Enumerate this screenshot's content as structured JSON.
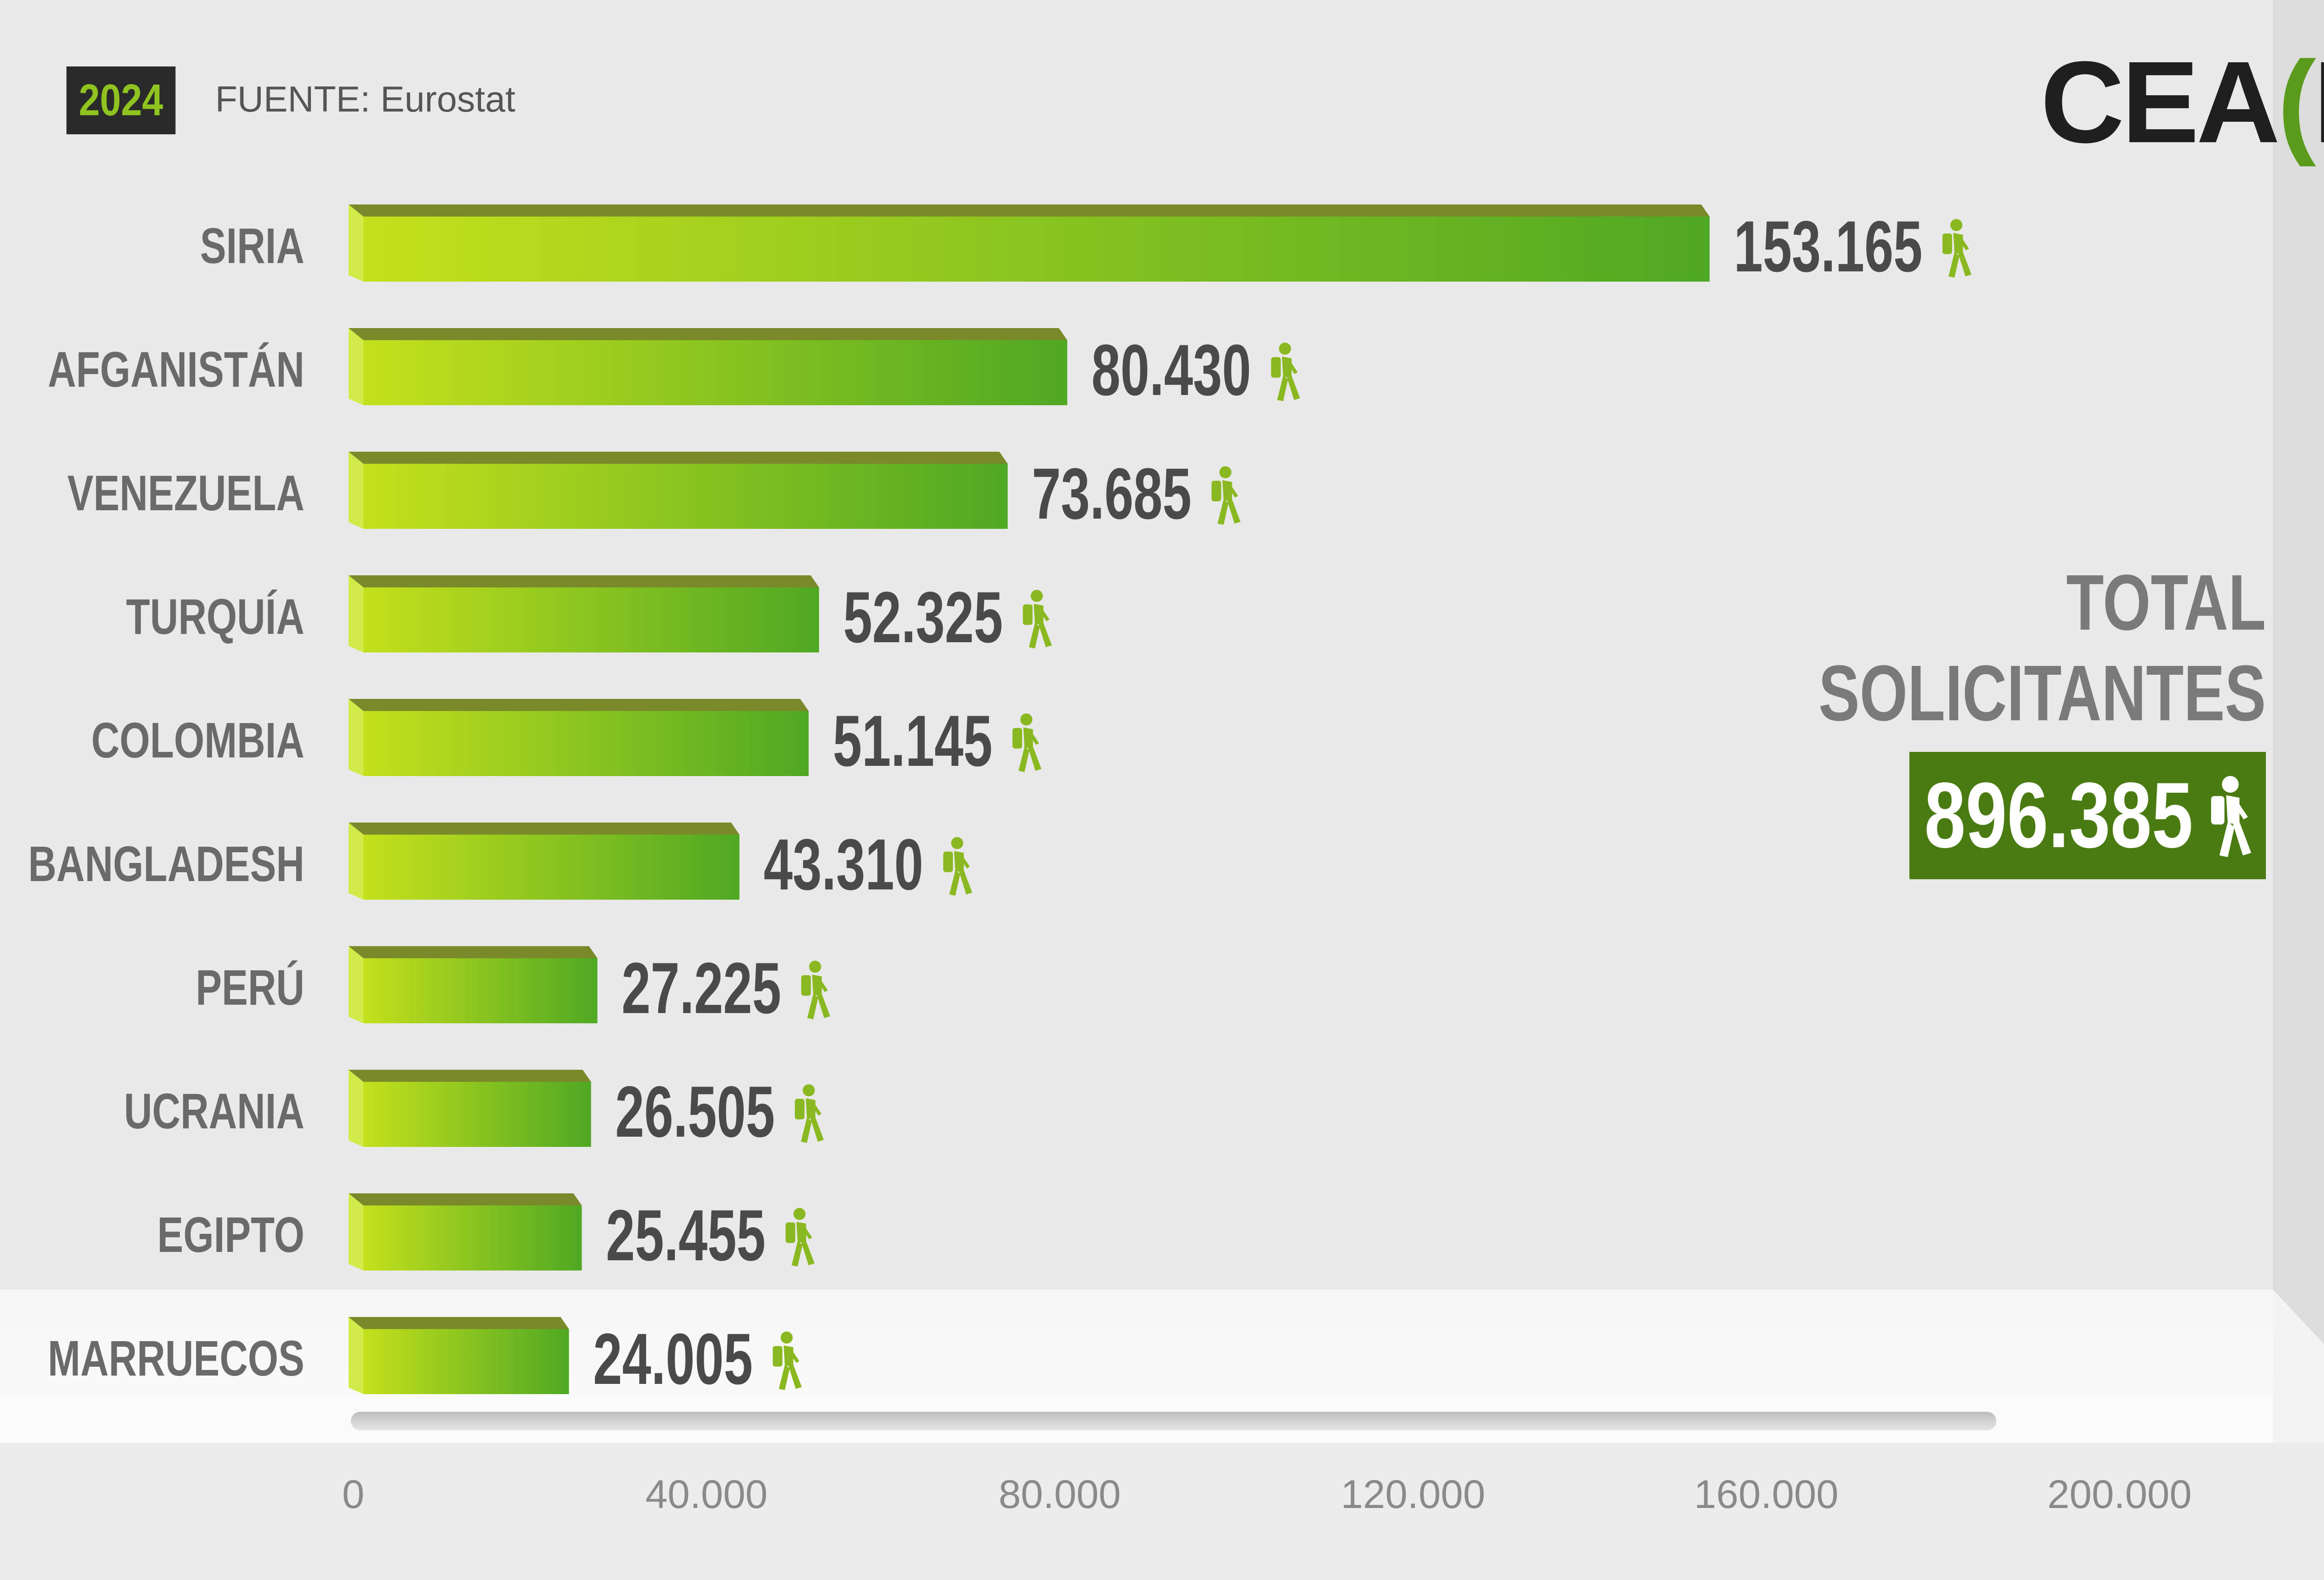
{
  "header": {
    "year": "2024",
    "source": "FUENTE: Eurostat",
    "logo": {
      "prefix": "CEA",
      "open": "(",
      "letter": "R",
      "close": ")"
    }
  },
  "total": {
    "title_line1": "TOTAL",
    "title_line2": "SOLICITANTES",
    "value": "896.385"
  },
  "colors": {
    "bar_light": "#c4e01c",
    "bar_dark": "#4fa823",
    "bar_top": "#7a8a2a",
    "icon": "#8ab821",
    "value_text": "#4a4a4a",
    "label_text": "#6a6a6a",
    "total_box": "#4a7a12",
    "badge_bg": "#2a2a2a",
    "badge_text": "#8fc31f"
  },
  "chart_data": {
    "type": "bar",
    "orientation": "horizontal",
    "categories": [
      "SIRIA",
      "AFGANISTÁN",
      "VENEZUELA",
      "TURQUÍA",
      "COLOMBIA",
      "BANGLADESH",
      "PERÚ",
      "UCRANIA",
      "EGIPTO",
      "MARRUECOS"
    ],
    "values": [
      153165,
      80430,
      73685,
      52325,
      51145,
      43310,
      27225,
      26505,
      25455,
      24005
    ],
    "value_labels": [
      "153.165",
      "80.430",
      "73.685",
      "52.325",
      "51.145",
      "43.310",
      "27.225",
      "26.505",
      "25.455",
      "24.005"
    ],
    "x_ticks": [
      0,
      40000,
      80000,
      120000,
      160000,
      200000
    ],
    "x_tick_labels": [
      "0",
      "40.000",
      "80.000",
      "120.000",
      "160.000",
      "200.000"
    ],
    "xlim": [
      0,
      200000
    ],
    "grid": false,
    "legend": "none",
    "value_icon": "walking-person-with-backpack-icon"
  }
}
